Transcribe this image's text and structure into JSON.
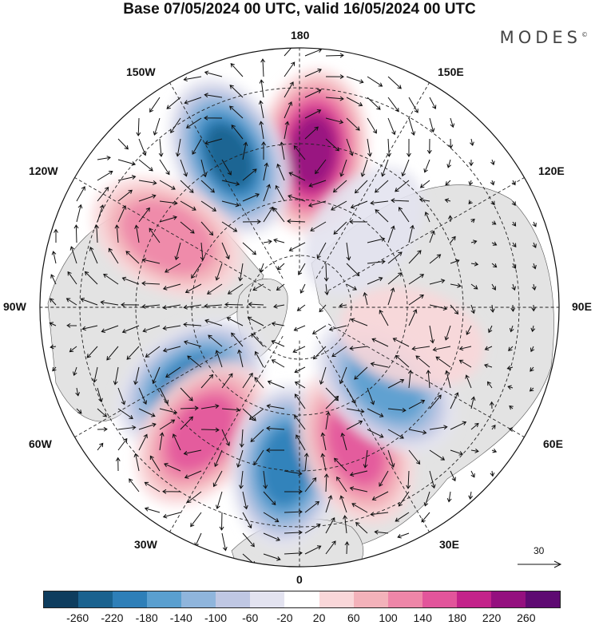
{
  "title": "Base 07/05/2024 00 UTC, valid 16/05/2024 00 UTC",
  "brand": "MODES",
  "brand_mark": "©",
  "longitude_labels": {
    "top": "180",
    "bottom": "0",
    "left": "90W",
    "right": "90E",
    "upper_left_1": "150W",
    "upper_left_2": "120W",
    "upper_right_1": "150E",
    "upper_right_2": "120E",
    "lower_left_1": "60W",
    "lower_left_2": "30W",
    "lower_right_1": "60E",
    "lower_right_2": "30E"
  },
  "reference_vector": "30",
  "colorbar": {
    "colors": [
      "#0e3d5e",
      "#1a628f",
      "#2e7fb8",
      "#5a9fcf",
      "#8fb5dc",
      "#bfc7e3",
      "#e3e3f0",
      "#ffffff",
      "#f9d7d9",
      "#f3b2ba",
      "#ee86a8",
      "#e2559b",
      "#c3238a",
      "#94107f",
      "#5e0a72"
    ],
    "ticks": [
      "-260",
      "-220",
      "-180",
      "-140",
      "-100",
      "-60",
      "-20",
      "20",
      "60",
      "100",
      "140",
      "180",
      "220",
      "260"
    ]
  },
  "anomaly_centers": [
    {
      "lon": 175,
      "lat": 43,
      "value": 240,
      "sign": "positive"
    },
    {
      "lon": -155,
      "lat": 40,
      "value": -230,
      "sign": "negative"
    },
    {
      "lon": -118,
      "lat": 45,
      "value": 140,
      "sign": "positive"
    },
    {
      "lon": -55,
      "lat": 50,
      "value": -200,
      "sign": "negative"
    },
    {
      "lon": -38,
      "lat": 42,
      "value": 170,
      "sign": "positive"
    },
    {
      "lon": -5,
      "lat": 42,
      "value": -210,
      "sign": "negative"
    },
    {
      "lon": 22,
      "lat": 45,
      "value": 160,
      "sign": "positive"
    },
    {
      "lon": 48,
      "lat": 55,
      "value": -170,
      "sign": "negative"
    },
    {
      "lon": 75,
      "lat": 55,
      "value": 60,
      "sign": "positive"
    },
    {
      "lon": 140,
      "lat": 60,
      "value": -60,
      "sign": "negative"
    }
  ]
}
